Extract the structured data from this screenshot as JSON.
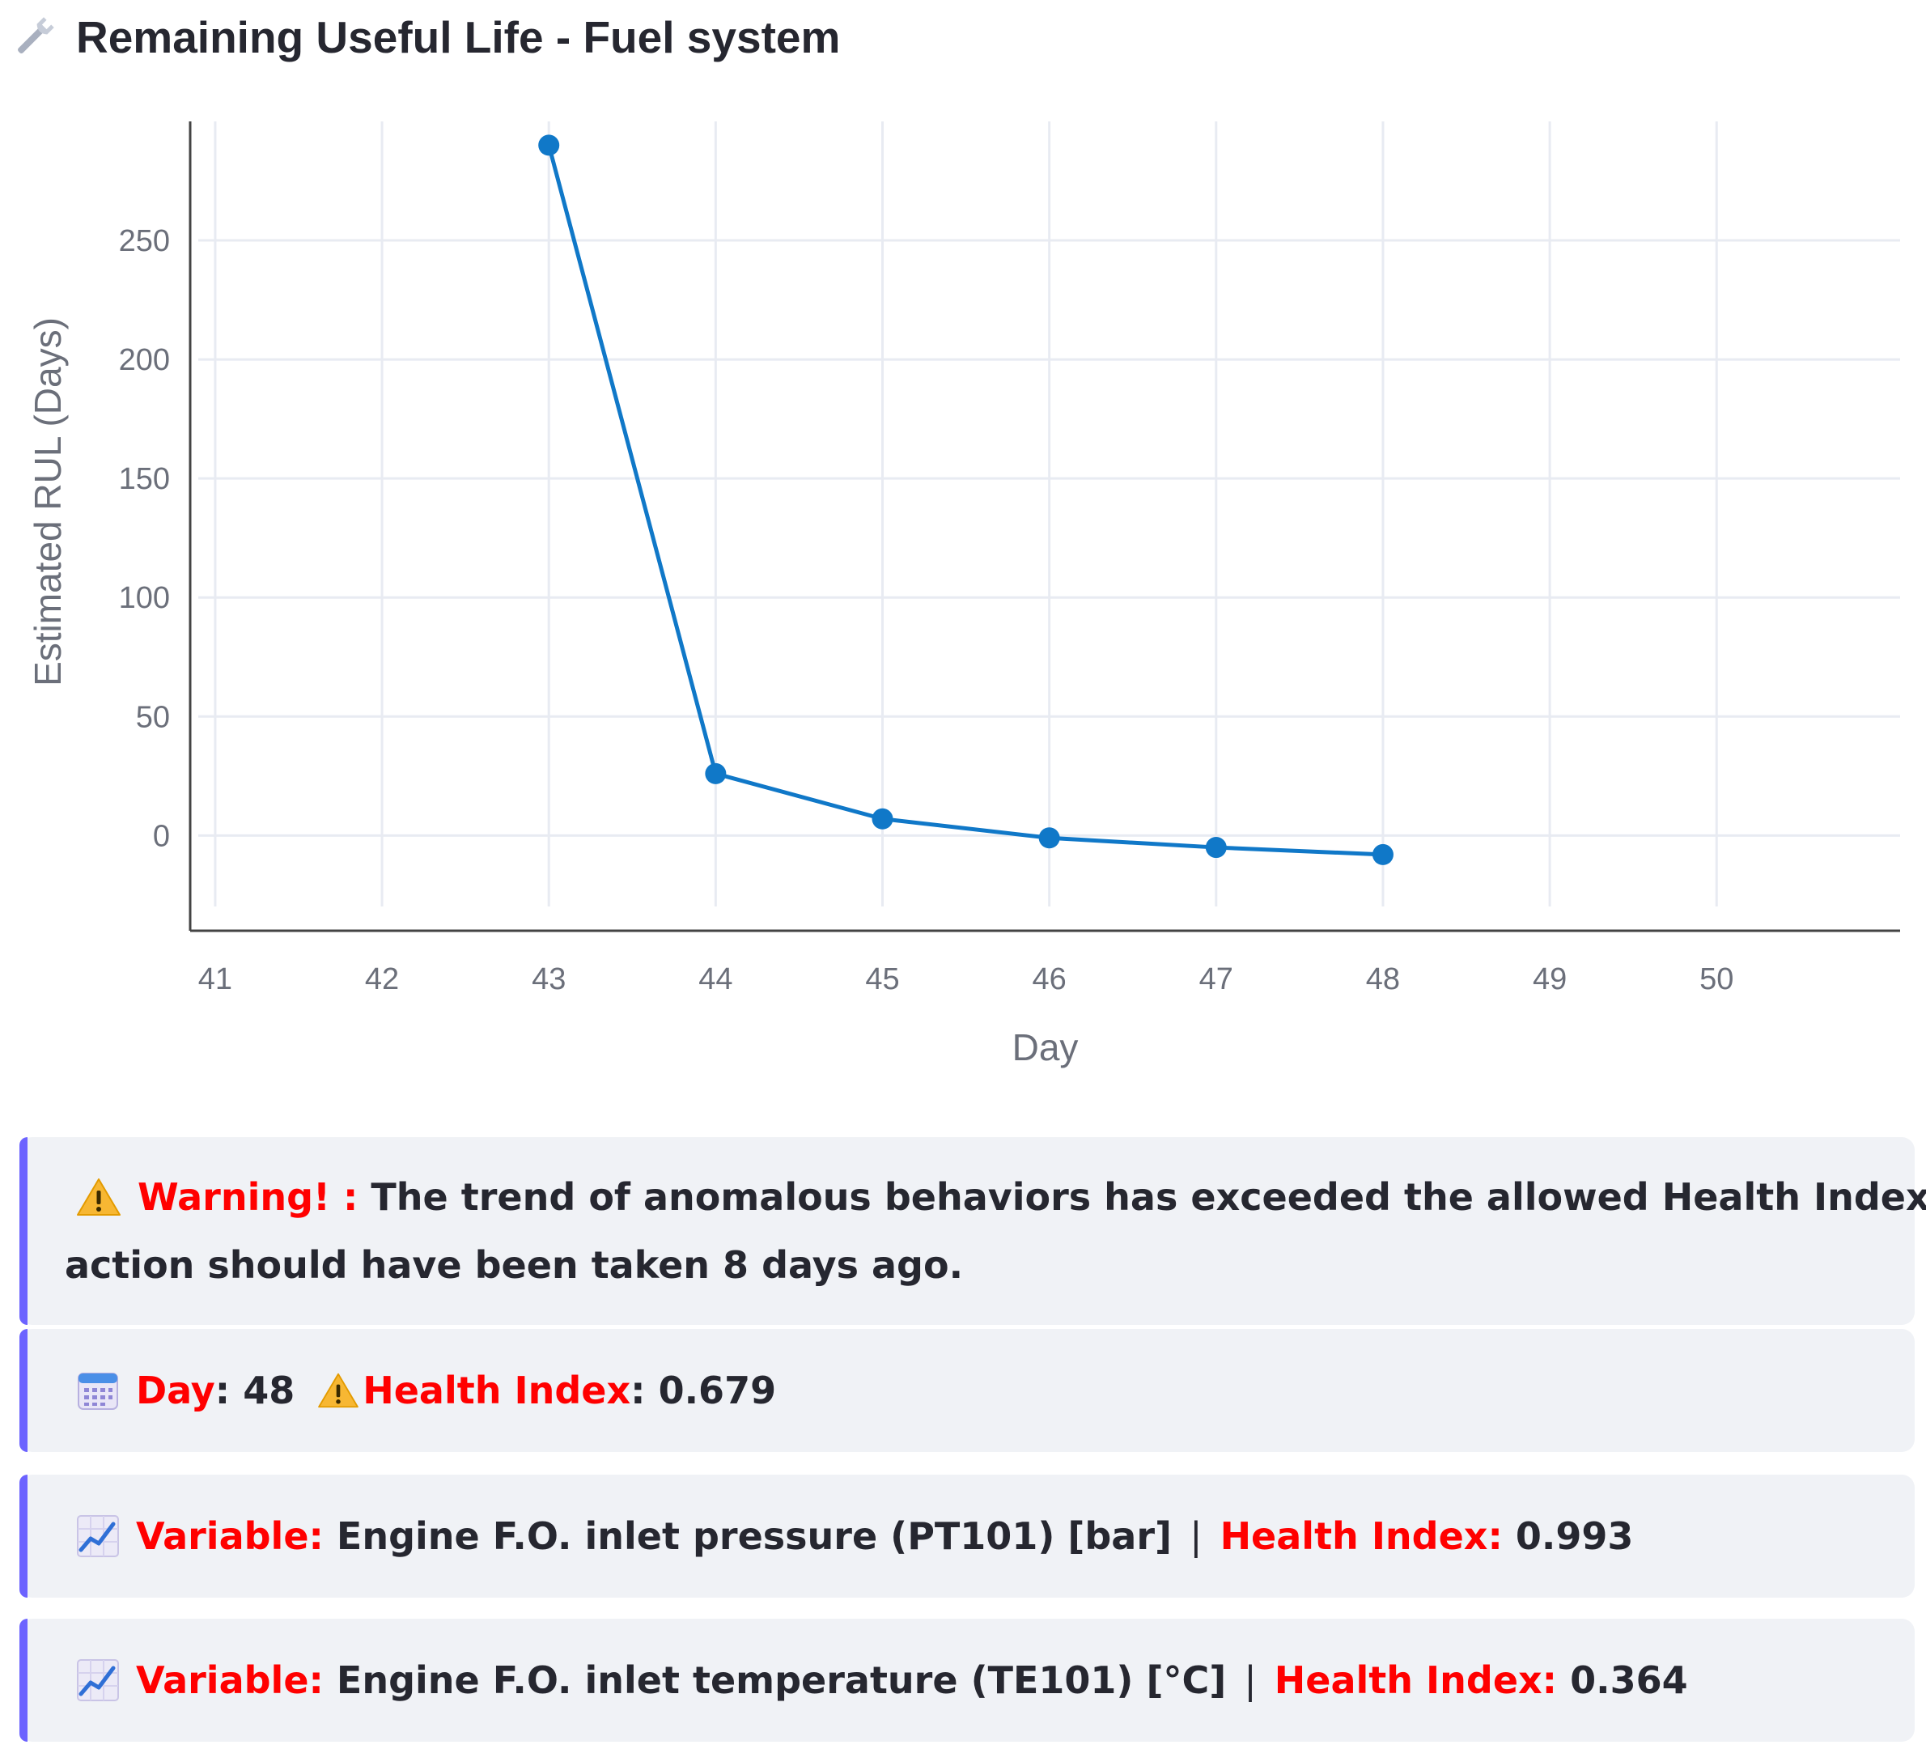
{
  "header": {
    "icon": "wrench-icon",
    "title": "Remaining Useful Life - Fuel system"
  },
  "chart_data": {
    "type": "line",
    "title": "",
    "xlabel": "Day",
    "ylabel": "Estimated RUL (Days)",
    "x": [
      43,
      44,
      45,
      46,
      47,
      48
    ],
    "series": [
      {
        "values": [
          290,
          26,
          7,
          -1,
          -5,
          -8
        ],
        "color": "#1078c8"
      }
    ],
    "xlim": [
      40.85,
      51.1
    ],
    "ylim": [
      -40,
      300
    ],
    "x_ticks": [
      "41",
      "42",
      "43",
      "44",
      "45",
      "46",
      "47",
      "48",
      "49",
      "50"
    ],
    "y_ticks": [
      "0",
      "50",
      "100",
      "150",
      "200",
      "250"
    ],
    "grid": true
  },
  "warning": {
    "icon": "warning-icon",
    "label": "Warning! :",
    "text_line1": " The trend of anomalous behaviors has exceeded the allowed Health Index;",
    "text_line2": "action should have been taken 8 days ago."
  },
  "status": {
    "day_icon": "calendar-icon",
    "day_label": "Day",
    "day_sep": ": ",
    "day_value": "48",
    "hi_icon": "warning-icon",
    "hi_label": "Health Index",
    "hi_sep": ": ",
    "hi_value": "0.679"
  },
  "variables": [
    {
      "icon": "chart-increasing-icon",
      "label": "Variable:",
      "name": " Engine F.O. inlet pressure (PT101) [bar]",
      "separator": "|",
      "hi_label": "Health Index:",
      "hi_value": " 0.993"
    },
    {
      "icon": "chart-increasing-icon",
      "label": "Variable:",
      "name": " Engine F.O. inlet temperature (TE101) [°C]",
      "separator": "|",
      "hi_label": "Health Index:",
      "hi_value": " 0.364"
    }
  ],
  "colors": {
    "accent_border": "#6c63ff",
    "card_bg": "#f0f2f6",
    "emphasis_red": "#ff0000",
    "line_blue": "#1078c8"
  }
}
